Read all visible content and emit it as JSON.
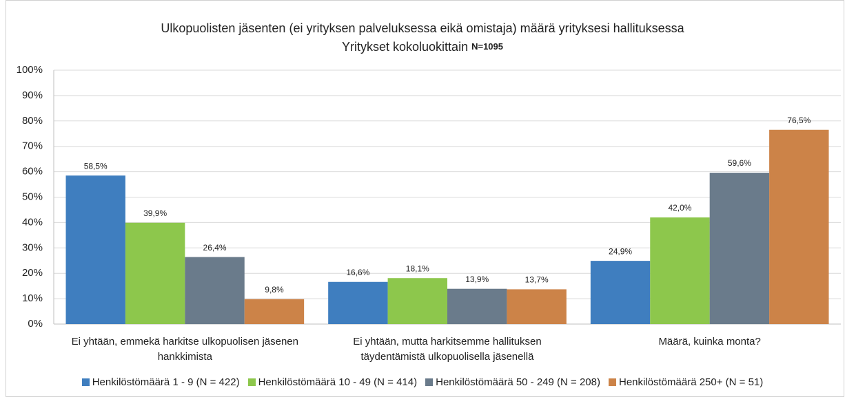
{
  "chart_data": {
    "type": "bar",
    "title": "Ulkopuolisten jäsenten (ei yrityksen palveluksessa eikä omistaja) määrä yrityksesi hallituksessa",
    "subtitle": "Yritykset kokoluokittain",
    "subtitle_note": "N=1095",
    "categories": [
      "Ei yhtään, emmekä harkitse ulkopuolisen jäsenen hankkimista",
      "Ei yhtään, mutta harkitsemme hallituksen täydentämistä ulkopuolisella jäsenellä",
      "Määrä, kuinka monta?"
    ],
    "series": [
      {
        "name": "Henkilöstömäärä 1 - 9 (N = 422)",
        "color": "#3f7ebf",
        "values": [
          58.5,
          16.6,
          24.9
        ],
        "value_labels": [
          "58,5%",
          "16,6%",
          "24,9%"
        ]
      },
      {
        "name": "Henkilöstömäärä 10 - 49 (N = 414)",
        "color": "#8dc74c",
        "values": [
          39.9,
          18.1,
          42.0
        ],
        "value_labels": [
          "39,9%",
          "18,1%",
          "42,0%"
        ]
      },
      {
        "name": "Henkilöstömäärä 50 - 249 (N = 208)",
        "color": "#6a7b8b",
        "values": [
          26.4,
          13.9,
          59.6
        ],
        "value_labels": [
          "26,4%",
          "13,9%",
          "59,6%"
        ]
      },
      {
        "name": "Henkilöstömäärä 250+ (N = 51)",
        "color": "#cc8348",
        "values": [
          9.8,
          13.7,
          76.5
        ],
        "value_labels": [
          "9,8%",
          "13,7%",
          "76,5%"
        ]
      }
    ],
    "ylim": [
      0,
      100
    ],
    "yticks": [
      {
        "value": 0,
        "label": "0%"
      },
      {
        "value": 10,
        "label": "10%"
      },
      {
        "value": 20,
        "label": "20%"
      },
      {
        "value": 30,
        "label": "30%"
      },
      {
        "value": 40,
        "label": "40%"
      },
      {
        "value": 50,
        "label": "50%"
      },
      {
        "value": 60,
        "label": "60%"
      },
      {
        "value": 70,
        "label": "70%"
      },
      {
        "value": 80,
        "label": "80%"
      },
      {
        "value": 90,
        "label": "90%"
      },
      {
        "value": 100,
        "label": "100%"
      }
    ],
    "grid": true,
    "legend": "bottom"
  }
}
